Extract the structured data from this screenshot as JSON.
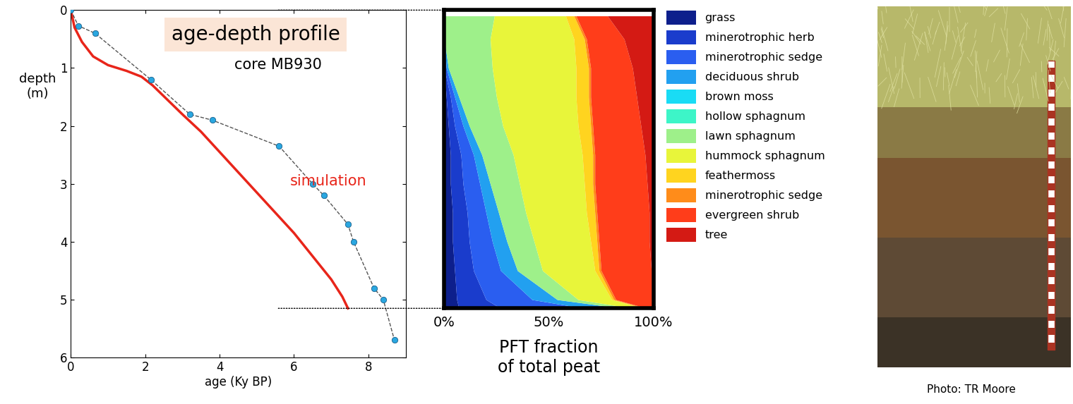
{
  "chart_data": [
    {
      "type": "line",
      "title": "age-depth profile",
      "x_label": "age (Ky BP)",
      "y_label": "depth\n(m)",
      "xlim": [
        0,
        9
      ],
      "xticks": [
        0,
        2,
        4,
        6,
        8
      ],
      "ylim": [
        6,
        0
      ],
      "yticks": [
        0,
        1,
        2,
        3,
        4,
        5,
        6
      ],
      "series": [
        {
          "name": "core MB930",
          "color": "#555555",
          "marker": "circle",
          "line_style": "dashed",
          "marker_color": "#2aa7e0",
          "x": [
            0,
            0.2,
            0.65,
            2.15,
            3.2,
            3.8,
            5.6,
            6.5,
            6.8,
            7.45,
            7.6,
            8.15,
            8.4,
            8.7
          ],
          "values": [
            0,
            0.27,
            0.4,
            1.2,
            1.8,
            1.9,
            2.35,
            3.0,
            3.2,
            3.7,
            4.0,
            4.8,
            5.0,
            5.7
          ]
        },
        {
          "name": "simulation",
          "color": "#e8251a",
          "line_style": "solid",
          "x": [
            0,
            0.1,
            0.3,
            0.6,
            1.0,
            1.5,
            1.9,
            2.2,
            2.6,
            3.0,
            3.5,
            4.0,
            4.5,
            5.0,
            5.5,
            6.0,
            6.5,
            7.0,
            7.3,
            7.45
          ],
          "values": [
            0,
            0.3,
            0.55,
            0.8,
            0.95,
            1.05,
            1.15,
            1.3,
            1.55,
            1.8,
            2.1,
            2.45,
            2.8,
            3.15,
            3.5,
            3.85,
            4.25,
            4.65,
            4.95,
            5.15
          ]
        }
      ]
    },
    {
      "type": "area",
      "orientation": "horizontal",
      "stacked": true,
      "x_label": "PFT fraction\nof total peat",
      "tick_labels": "x",
      "legend": "right",
      "xlim": [
        0,
        100
      ],
      "xticks": [
        {
          "value": 0,
          "label": "0%"
        },
        {
          "value": 50,
          "label": "50%"
        },
        {
          "value": 100,
          "label": "100%"
        }
      ],
      "ylim": [
        5.15,
        0
      ],
      "x": [
        0.1,
        0.5,
        1.0,
        1.5,
        2.0,
        2.5,
        3.0,
        3.5,
        4.0,
        4.5,
        5.0,
        5.15
      ],
      "series": [
        {
          "name": "grass",
          "color": "#0d1f8c",
          "values": [
            0,
            0,
            0,
            1,
            2,
            3,
            3,
            4,
            4,
            5,
            6,
            7
          ]
        },
        {
          "name": "minerotrophic herb",
          "color": "#1a3ccc",
          "values": [
            0,
            0,
            0,
            2,
            3,
            5,
            6,
            7,
            8,
            9,
            14,
            20
          ]
        },
        {
          "name": "minerotrophic sedge",
          "color": "#2a5ef0",
          "values": [
            0,
            0,
            1,
            2,
            4,
            6,
            8,
            9,
            11,
            13,
            22,
            40
          ]
        },
        {
          "name": "deciduous shrub",
          "color": "#22a0f0",
          "values": [
            0,
            0,
            1,
            2,
            3,
            4,
            5,
            6,
            7,
            8,
            12,
            18
          ]
        },
        {
          "name": "brown moss",
          "color": "#19dcf5",
          "values": [
            0,
            0,
            0,
            0,
            0,
            0,
            0,
            0,
            0,
            0,
            0,
            0
          ]
        },
        {
          "name": "hollow sphagnum",
          "color": "#3df5c8",
          "values": [
            0,
            0,
            0,
            0,
            0,
            0,
            0,
            0,
            0,
            0,
            0,
            0
          ]
        },
        {
          "name": "lawn sphagnum",
          "color": "#9ef08a",
          "values": [
            24,
            22,
            21,
            18,
            16,
            15,
            14,
            13,
            13,
            12,
            10,
            5
          ]
        },
        {
          "name": "hummock sphagnum",
          "color": "#e8f53a",
          "values": [
            34,
            40,
            40,
            38,
            36,
            33,
            31,
            29,
            27,
            25,
            16,
            5
          ]
        },
        {
          "name": "feathermoss",
          "color": "#ffd41f",
          "values": [
            4,
            5,
            6,
            6,
            6,
            5,
            4,
            4,
            3,
            2,
            1,
            1
          ]
        },
        {
          "name": "minerotrophic sedge",
          "color": "#ff8c1a",
          "values": [
            1,
            1,
            1,
            1,
            1,
            1,
            1,
            1,
            1,
            1,
            1,
            1
          ]
        },
        {
          "name": "evergreen shrub",
          "color": "#ff3d1a",
          "values": [
            15,
            18,
            20,
            22,
            23,
            24,
            25,
            25,
            24,
            24,
            17,
            3
          ]
        },
        {
          "name": "tree",
          "color": "#d41a14",
          "values": [
            22,
            14,
            10,
            8,
            6,
            4,
            3,
            2,
            2,
            1,
            1,
            0
          ]
        }
      ]
    }
  ],
  "photo": {
    "credit": "Photo: TR Moore"
  }
}
